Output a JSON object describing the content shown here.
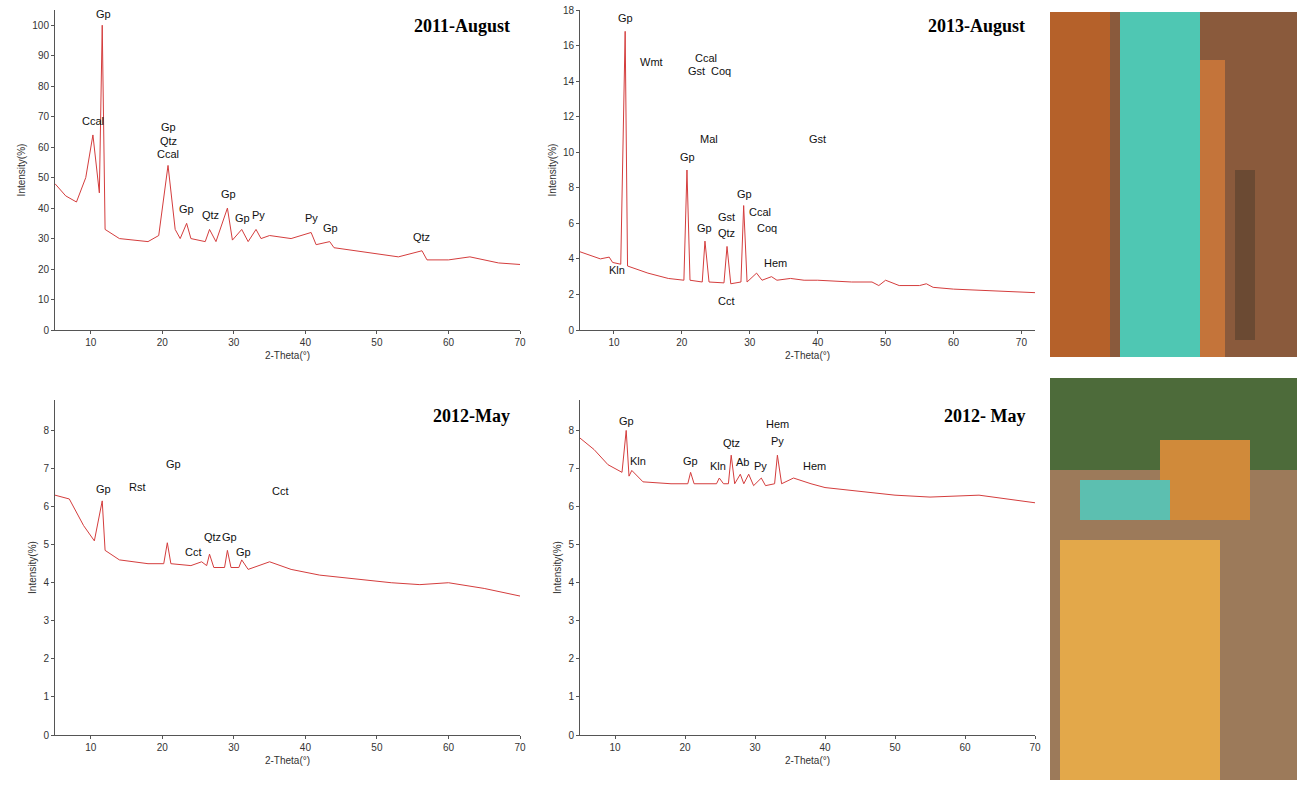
{
  "chart_data": [
    {
      "type": "line",
      "title": "2011-August",
      "x_label": "2-Theta(°)",
      "y_label": "Intensity(%)",
      "color": "#d43d3d",
      "x": [
        5,
        6.5,
        8,
        9.3,
        10.3,
        11.2,
        11.6,
        12,
        14,
        18,
        19.5,
        20.8,
        21.8,
        22.5,
        23.4,
        24,
        26,
        26.6,
        27.5,
        29.1,
        29.8,
        31.1,
        32,
        33.1,
        33.8,
        35,
        38,
        40.8,
        41.5,
        43.4,
        44,
        47,
        50,
        53,
        56.3,
        57,
        60,
        63,
        67,
        70
      ],
      "values": [
        48,
        44,
        42,
        50,
        64,
        45,
        100,
        33,
        30,
        29,
        31,
        54,
        33,
        30,
        35,
        30,
        29,
        33,
        29,
        40,
        29.5,
        33,
        29,
        33,
        30,
        31,
        30,
        32,
        28,
        29,
        27,
        26,
        25,
        24,
        26,
        23,
        23,
        24,
        22,
        21.5
      ],
      "xlim": [
        5,
        70
      ],
      "ylim": [
        0,
        105
      ],
      "xticks": [
        10,
        20,
        30,
        40,
        50,
        60,
        70
      ],
      "yticks": [
        0,
        10,
        20,
        30,
        40,
        50,
        60,
        70,
        80,
        90,
        100
      ],
      "annotations": [
        {
          "text": "Ccal",
          "x": 10.3,
          "y": 66
        },
        {
          "text": "Gp",
          "x": 11.8,
          "y": 101
        },
        {
          "text": "Gp",
          "x": 20.8,
          "y": 64
        },
        {
          "text": "Qtz",
          "x": 20.8,
          "y": 59.5
        },
        {
          "text": "Ccal",
          "x": 20.8,
          "y": 55
        },
        {
          "text": "Gp",
          "x": 23.4,
          "y": 37
        },
        {
          "text": "Qtz",
          "x": 26.7,
          "y": 35
        },
        {
          "text": "Gp",
          "x": 29.2,
          "y": 42
        },
        {
          "text": "Gp",
          "x": 31.2,
          "y": 34
        },
        {
          "text": "Py",
          "x": 33.5,
          "y": 35
        },
        {
          "text": "Py",
          "x": 40.8,
          "y": 34
        },
        {
          "text": "Gp",
          "x": 43.5,
          "y": 31
        },
        {
          "text": "Qtz",
          "x": 56.3,
          "y": 28
        }
      ]
    },
    {
      "type": "line",
      "title": "2013-August",
      "x_label": "2-Theta(°)",
      "y_label": "Intensity(%)",
      "color": "#d43d3d",
      "x": [
        5,
        8,
        9.3,
        9.8,
        11,
        11.65,
        12,
        15,
        18,
        20.3,
        20.75,
        21.2,
        23,
        23.4,
        24,
        26.2,
        26.65,
        27.2,
        28.7,
        29.1,
        29.6,
        31,
        31.8,
        33.2,
        34,
        36,
        38,
        40,
        45,
        48,
        49,
        50,
        52,
        55,
        56,
        57,
        60,
        65,
        72
      ],
      "values": [
        4.4,
        4.0,
        4.1,
        3.8,
        3.7,
        16.8,
        3.6,
        3.2,
        2.9,
        2.8,
        9.0,
        2.8,
        2.7,
        5.0,
        2.7,
        2.65,
        4.7,
        2.6,
        2.7,
        7.0,
        2.7,
        3.2,
        2.8,
        3.0,
        2.8,
        2.9,
        2.8,
        2.8,
        2.7,
        2.7,
        2.5,
        2.8,
        2.5,
        2.5,
        2.6,
        2.4,
        2.3,
        2.2,
        2.1
      ],
      "xlim": [
        5,
        72
      ],
      "ylim": [
        0,
        18
      ],
      "xticks": [
        10,
        20,
        30,
        40,
        50,
        60,
        70
      ],
      "yticks": [
        0,
        2,
        4,
        6,
        8,
        10,
        12,
        14,
        16,
        18
      ],
      "annotations": [
        {
          "text": "Gp",
          "x": 11.7,
          "y": 17.1
        },
        {
          "text": "Kln",
          "x": 10.5,
          "y": 2.9
        },
        {
          "text": "Wmt",
          "x": 15.5,
          "y": 14.6
        },
        {
          "text": "Ccal",
          "x": 23.5,
          "y": 14.85
        },
        {
          "text": "Gst",
          "x": 22.2,
          "y": 14.1
        },
        {
          "text": "Coq",
          "x": 25.8,
          "y": 14.1
        },
        {
          "text": "Mal",
          "x": 24,
          "y": 10.3
        },
        {
          "text": "Gst",
          "x": 40,
          "y": 10.3
        },
        {
          "text": "Gp",
          "x": 20.8,
          "y": 9.3
        },
        {
          "text": "Gp",
          "x": 23.4,
          "y": 5.3
        },
        {
          "text": "Gst",
          "x": 26.6,
          "y": 5.9
        },
        {
          "text": "Qtz",
          "x": 26.6,
          "y": 5.0
        },
        {
          "text": "Gp",
          "x": 29.2,
          "y": 7.2
        },
        {
          "text": "Ccal",
          "x": 31.5,
          "y": 6.2
        },
        {
          "text": "Coq",
          "x": 32.5,
          "y": 5.3
        },
        {
          "text": "Hem",
          "x": 33.8,
          "y": 3.3
        },
        {
          "text": "Cct",
          "x": 26.5,
          "y": 1.2
        }
      ]
    },
    {
      "type": "line",
      "title": "2012-May",
      "x_label": "2-Theta(°)",
      "y_label": "Intensity(%)",
      "color": "#d43d3d",
      "x": [
        5,
        7,
        9,
        10.5,
        11.6,
        12,
        14,
        18,
        20.2,
        20.7,
        21.2,
        24,
        25.5,
        26.2,
        26.6,
        27.2,
        28.7,
        29.1,
        29.6,
        30.7,
        31.1,
        32,
        35,
        38,
        42,
        47,
        52,
        56,
        60,
        65,
        70
      ],
      "values": [
        6.3,
        6.2,
        5.5,
        5.1,
        6.15,
        4.85,
        4.6,
        4.5,
        4.5,
        5.05,
        4.5,
        4.45,
        4.55,
        4.45,
        4.75,
        4.4,
        4.4,
        4.85,
        4.4,
        4.4,
        4.6,
        4.35,
        4.55,
        4.35,
        4.2,
        4.1,
        4.0,
        3.95,
        4.0,
        3.85,
        3.65
      ],
      "xlim": [
        5,
        70
      ],
      "ylim": [
        0,
        8.8
      ],
      "xticks": [
        10,
        20,
        30,
        40,
        50,
        60,
        70
      ],
      "yticks": [
        0,
        1,
        2,
        3,
        4,
        5,
        6,
        7,
        8
      ],
      "annotations": [
        {
          "text": "Gp",
          "x": 11.8,
          "y": 6.25
        },
        {
          "text": "Rst",
          "x": 16.5,
          "y": 6.3
        },
        {
          "text": "Gp",
          "x": 21.5,
          "y": 6.9
        },
        {
          "text": "Cct",
          "x": 24.3,
          "y": 4.6
        },
        {
          "text": "Qtz",
          "x": 27,
          "y": 5.0
        },
        {
          "text": "Gp",
          "x": 29.4,
          "y": 5.0
        },
        {
          "text": "Gp",
          "x": 31.4,
          "y": 4.6
        },
        {
          "text": "Cct",
          "x": 36.5,
          "y": 6.2
        }
      ]
    },
    {
      "type": "line",
      "title": "2012- May",
      "x_label": "2-Theta(°)",
      "y_label": "Intensity(%)",
      "color": "#d43d3d",
      "x": [
        5,
        7,
        9,
        11,
        11.6,
        12,
        12.4,
        14,
        18,
        20.4,
        20.8,
        21.3,
        24.5,
        24.9,
        25.5,
        26.2,
        26.6,
        27.1,
        27.9,
        28.4,
        29.1,
        29.8,
        30.9,
        31.5,
        32.8,
        33.2,
        33.8,
        35.5,
        38,
        40,
        45,
        50,
        55,
        62,
        66,
        70
      ],
      "values": [
        7.8,
        7.5,
        7.1,
        6.9,
        8.0,
        6.8,
        6.95,
        6.65,
        6.6,
        6.6,
        6.9,
        6.6,
        6.6,
        6.75,
        6.6,
        6.6,
        7.35,
        6.6,
        6.85,
        6.6,
        6.85,
        6.55,
        6.75,
        6.55,
        6.6,
        7.35,
        6.6,
        6.75,
        6.6,
        6.5,
        6.4,
        6.3,
        6.25,
        6.3,
        6.2,
        6.1
      ],
      "xlim": [
        5,
        70
      ],
      "ylim": [
        0,
        8.8
      ],
      "xticks": [
        10,
        20,
        30,
        40,
        50,
        60,
        70
      ],
      "yticks": [
        0,
        1,
        2,
        3,
        4,
        5,
        6,
        7,
        8
      ],
      "annotations": [
        {
          "text": "Gp",
          "x": 11.7,
          "y": 8.05
        },
        {
          "text": "Kln",
          "x": 13.3,
          "y": 7.0
        },
        {
          "text": "Gp",
          "x": 20.8,
          "y": 7.0
        },
        {
          "text": "Kln",
          "x": 24.7,
          "y": 6.85
        },
        {
          "text": "Qtz",
          "x": 26.6,
          "y": 7.45
        },
        {
          "text": "Ab",
          "x": 28.2,
          "y": 6.95
        },
        {
          "text": "Py",
          "x": 30.8,
          "y": 6.85
        },
        {
          "text": "Hem",
          "x": 33.2,
          "y": 7.95
        },
        {
          "text": "Py",
          "x": 33.2,
          "y": 7.5
        },
        {
          "text": "Hem",
          "x": 38.5,
          "y": 6.85
        }
      ]
    }
  ]
}
